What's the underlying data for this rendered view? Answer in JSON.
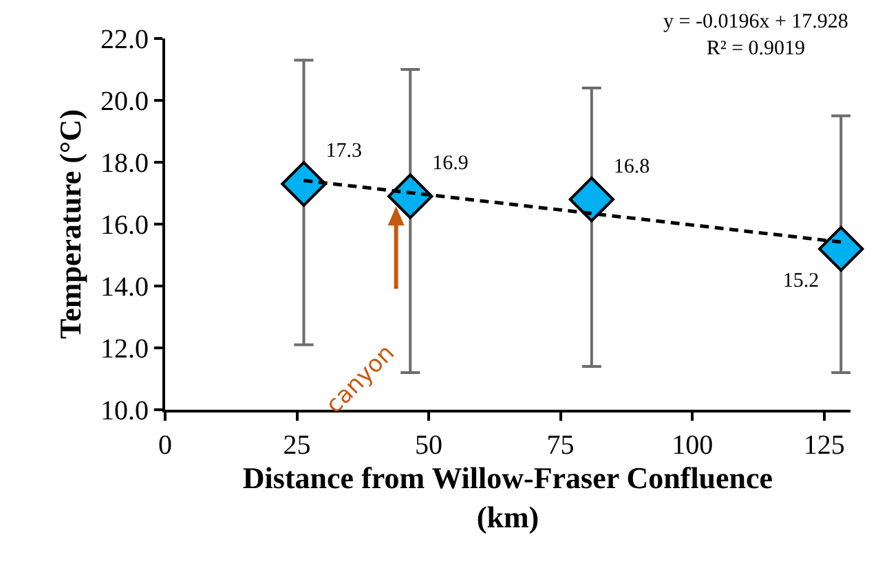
{
  "chart_data": {
    "type": "scatter",
    "xlabel": "Distance from Willow-Fraser Confluence\n(km)",
    "ylabel": "Temperature (°C)",
    "xlim": [
      0,
      130
    ],
    "xticks": [
      0,
      25,
      50,
      75,
      100,
      125
    ],
    "ylim": [
      10,
      22
    ],
    "yticks": [
      {
        "value": 10,
        "label": "10.0"
      },
      {
        "value": 12,
        "label": "12.0"
      },
      {
        "value": 14,
        "label": "14.0"
      },
      {
        "value": 16,
        "label": "16.0"
      },
      {
        "value": 18,
        "label": "18.0"
      },
      {
        "value": 20,
        "label": "20.0"
      },
      {
        "value": 22,
        "label": "22.0"
      }
    ],
    "series": [
      {
        "marker": "diamond",
        "color": "#00b0f0",
        "x": [
          26.3,
          46.5,
          80.9,
          128.2
        ],
        "values": [
          17.3,
          16.9,
          16.8,
          15.2
        ],
        "value_labels": [
          "17.3",
          "16.9",
          "16.8",
          "15.2"
        ],
        "errors": [
          [
            12.1,
            21.3
          ],
          [
            11.2,
            21.0
          ],
          [
            11.4,
            20.4
          ],
          [
            11.2,
            19.5
          ]
        ]
      },
      {
        "type": "line",
        "line_style": "dashed",
        "marker": "none",
        "color": "#000000",
        "x": [
          26.3,
          128.2
        ],
        "values": [
          17.41,
          15.42
        ]
      }
    ],
    "annotations": [
      "y = -0.0196x + 17.928\nR² = 0.9019",
      "canyon"
    ]
  }
}
